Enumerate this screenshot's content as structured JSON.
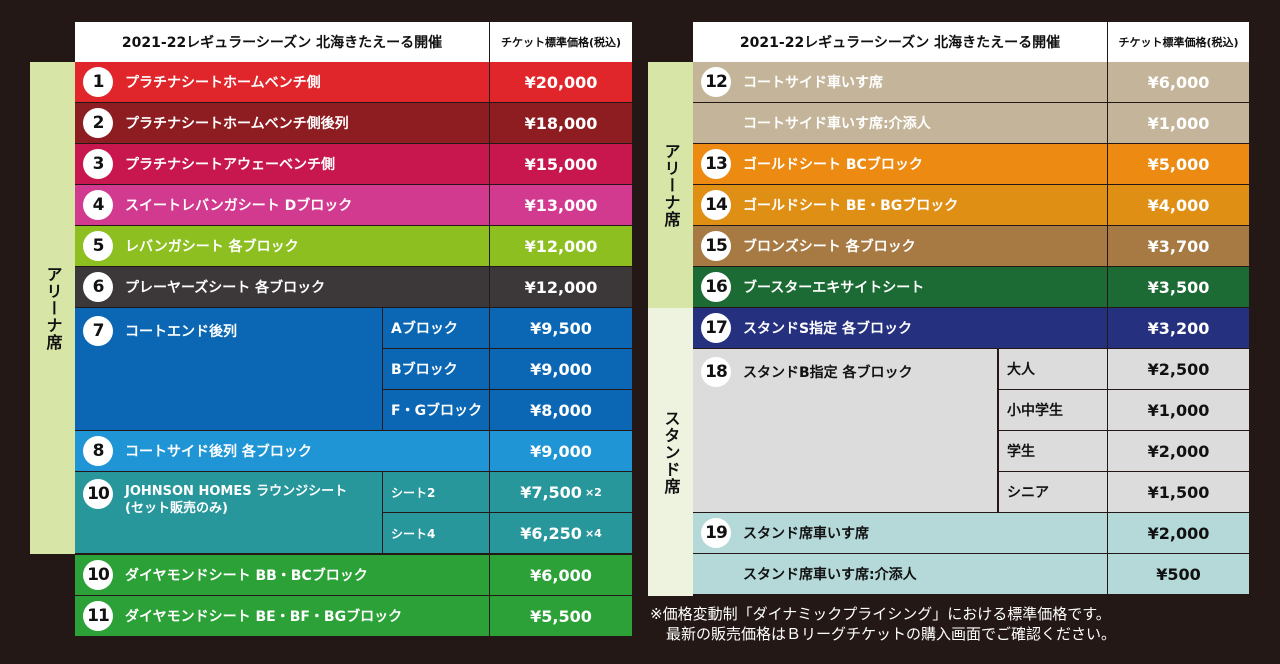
{
  "left": {
    "header_title": "2021-22レギュラーシーズン 北海きたえーる開催",
    "header_price": "チケット標準価格(税込)",
    "side_label": "アリーナ席",
    "rows": [
      {
        "num": "1",
        "name": "プラチナシートホームベンチ側",
        "price": "¥20,000",
        "color": "#e0262b"
      },
      {
        "num": "2",
        "name": "プラチナシートホームベンチ側後列",
        "price": "¥18,000",
        "color": "#8e1d22"
      },
      {
        "num": "3",
        "name": "プラチナシートアウェーベンチ側",
        "price": "¥15,000",
        "color": "#c8174f"
      },
      {
        "num": "4",
        "name": "スイートレバンガシート Dブロック",
        "price": "¥13,000",
        "color": "#d23a8f"
      },
      {
        "num": "5",
        "name": "レバンガシート 各ブロック",
        "price": "¥12,000",
        "color": "#8cbf1f"
      },
      {
        "num": "6",
        "name": "プレーヤーズシート 各ブロック",
        "price": "¥12,000",
        "color": "#3c3839"
      }
    ],
    "court_end": {
      "num": "7",
      "name": "コートエンド後列",
      "color": "#0b67b3",
      "subs": [
        {
          "label": "Aブロック",
          "price": "¥9,500"
        },
        {
          "label": "Bブロック",
          "price": "¥9,000"
        },
        {
          "label": "F・Gブロック",
          "price": "¥8,000"
        }
      ]
    },
    "court_side": {
      "num": "8",
      "name": "コートサイド後列 各ブロック",
      "price": "¥9,000",
      "color": "#1f95d6"
    },
    "lounge": {
      "num": "10",
      "name": "JOHNSON HOMES ラウンジシート",
      "name2": "(セット販売のみ)",
      "color": "#27979b",
      "subs": [
        {
          "label": "シート2",
          "price": "¥7,500",
          "mult": "×2"
        },
        {
          "label": "シート4",
          "price": "¥6,250",
          "mult": "×4"
        }
      ]
    },
    "diamond": [
      {
        "num": "10",
        "name": "ダイヤモンドシート BB・BCブロック",
        "price": "¥6,000",
        "color": "#2ba137"
      },
      {
        "num": "11",
        "name": "ダイヤモンドシート BE・BF・BGブロック",
        "price": "¥5,500",
        "color": "#2ba137"
      }
    ]
  },
  "right": {
    "header_title": "2021-22レギュラーシーズン 北海きたえーる開催",
    "header_price": "チケット標準価格(税込)",
    "side_label_arena": "アリーナ席",
    "side_label_stand": "スタンド席",
    "arena_rows": [
      {
        "num": "12",
        "name": "コートサイド車いす席",
        "price": "¥6,000",
        "color": "#c4b59a"
      },
      {
        "num": "",
        "name": "コートサイド車いす席:介添人",
        "price": "¥1,000",
        "color": "#c4b59a"
      },
      {
        "num": "13",
        "name": "ゴールドシート BCブロック",
        "price": "¥5,000",
        "color": "#ec8a12"
      },
      {
        "num": "14",
        "name": "ゴールドシート BE・BGブロック",
        "price": "¥4,000",
        "color": "#e08f15"
      },
      {
        "num": "15",
        "name": "ブロンズシート 各ブロック",
        "price": "¥3,700",
        "color": "#a77a43"
      },
      {
        "num": "16",
        "name": "ブースターエキサイトシート",
        "price": "¥3,500",
        "color": "#1c6b34"
      }
    ],
    "stand_s": {
      "num": "17",
      "name": "スタンドS指定 各ブロック",
      "price": "¥3,200",
      "color": "#25307f"
    },
    "stand_b": {
      "num": "18",
      "name": "スタンドB指定 各ブロック",
      "color": "#dcdcdc",
      "subs": [
        {
          "label": "大人",
          "price": "¥2,500"
        },
        {
          "label": "小中学生",
          "price": "¥1,000"
        },
        {
          "label": "学生",
          "price": "¥2,000"
        },
        {
          "label": "シニア",
          "price": "¥1,500"
        }
      ]
    },
    "wheelchair": [
      {
        "num": "19",
        "name": "スタンド席車いす席",
        "price": "¥2,000",
        "color": "#b4d9d8"
      },
      {
        "num": "",
        "name": "スタンド席車いす席:介添人",
        "price": "¥500",
        "color": "#b4d9d8"
      }
    ],
    "note_line1": "※価格変動制「ダイナミックプライシング」における標準価格です。",
    "note_line2": "最新の販売価格はＢリーグチケットの購入画面でご確認ください。"
  }
}
